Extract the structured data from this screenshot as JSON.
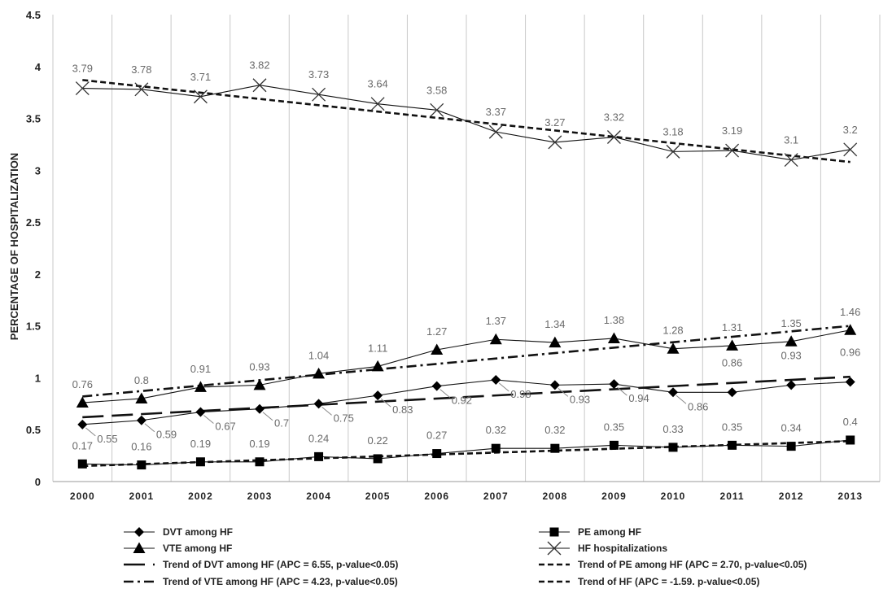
{
  "chart_data": {
    "type": "line",
    "ylabel": "PERCENTAGE OF HOSPITALIZATION",
    "xlabel": "",
    "ylim": [
      0,
      4.5
    ],
    "yticks": [
      0,
      0.5,
      1,
      1.5,
      2,
      2.5,
      3,
      3.5,
      4,
      4.5
    ],
    "ytick_labels": [
      "0",
      "0.5",
      "1",
      "1.5",
      "2",
      "2.5",
      "3",
      "3.5",
      "4",
      "4.5"
    ],
    "categories": [
      "2000",
      "2001",
      "2002",
      "2003",
      "2004",
      "2005",
      "2006",
      "2007",
      "2008",
      "2009",
      "2010",
      "2011",
      "2012",
      "2013"
    ],
    "grid": "vertical",
    "legend_position": "bottom",
    "series": [
      {
        "name": "DVT among HF",
        "marker": "diamond",
        "values": [
          0.55,
          0.59,
          0.67,
          0.7,
          0.75,
          0.83,
          0.92,
          0.98,
          0.93,
          0.94,
          0.86,
          0.86,
          0.93,
          0.96
        ],
        "labels": [
          "0.55",
          "0.59",
          "0.67",
          "0.7",
          "0.75",
          "0.83",
          "0.92",
          "0.98",
          "0.93",
          "0.94",
          "0.86",
          "",
          "",
          ""
        ]
      },
      {
        "name": "PE among HF",
        "marker": "square",
        "values": [
          0.17,
          0.16,
          0.19,
          0.19,
          0.24,
          0.22,
          0.27,
          0.32,
          0.32,
          0.35,
          0.33,
          0.35,
          0.34,
          0.4
        ],
        "labels": [
          "0.17",
          "0.16",
          "0.19",
          "0.19",
          "0.24",
          "0.22",
          "0.27",
          "0.32",
          "0.32",
          "0.35",
          "0.33",
          "0.35",
          "0.34",
          "0.4"
        ]
      },
      {
        "name": "VTE among HF",
        "marker": "triangle",
        "values": [
          0.76,
          0.8,
          0.91,
          0.93,
          1.04,
          1.11,
          1.27,
          1.37,
          1.34,
          1.38,
          1.28,
          1.31,
          1.35,
          1.46
        ],
        "labels": [
          "0.76",
          "0.8",
          "0.91",
          "0.93",
          "1.04",
          "1.11",
          "1.27",
          "1.37",
          "1.34",
          "1.38",
          "1.28",
          "1.31",
          "1.35",
          "1.46"
        ]
      },
      {
        "name": "HF hospitalizations",
        "marker": "x",
        "values": [
          3.79,
          3.78,
          3.71,
          3.82,
          3.73,
          3.64,
          3.58,
          3.37,
          3.27,
          3.32,
          3.18,
          3.19,
          3.1,
          3.2
        ],
        "labels": [
          "3.79",
          "3.78",
          "3.71",
          "3.82",
          "3.73",
          "3.64",
          "3.58",
          "3.37",
          "3.27",
          "3.32",
          "3.18",
          "3.19",
          "3.1",
          "3.2"
        ]
      }
    ],
    "extra_labels": [
      {
        "category": "2011",
        "value": 0.86,
        "text": "0.86"
      },
      {
        "category": "2012",
        "value": 0.93,
        "text": "0.93"
      },
      {
        "category": "2013",
        "value": 0.96,
        "text": "0.96"
      }
    ],
    "trends": [
      {
        "name": "Trend of DVT among HF (APC = 6.55, p-value<0.05)",
        "style": "long-dash",
        "start": 0.62,
        "end": 1.01
      },
      {
        "name": "Trend of PE among HF (APC = 2.70, p-value<0.05)",
        "style": "short-dash",
        "start": 0.15,
        "end": 0.39
      },
      {
        "name": "Trend of VTE among HF (APC = 4.23, p-value<0.05)",
        "style": "dash-dot",
        "start": 0.82,
        "end": 1.5
      },
      {
        "name": "Trend of HF (APC = -1.59. p-value<0.05)",
        "style": "short-dash",
        "start": 3.87,
        "end": 3.08
      }
    ]
  }
}
